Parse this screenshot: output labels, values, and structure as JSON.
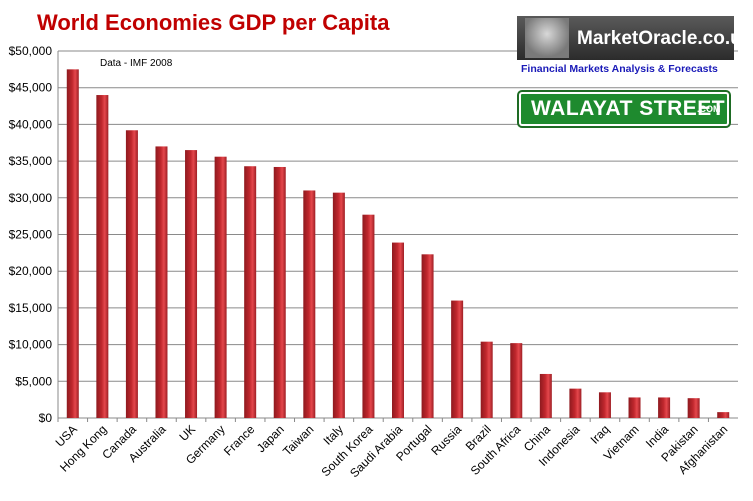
{
  "chart_data": {
    "type": "bar",
    "title": "World Economies GDP per Capita",
    "annotation": "Data - IMF 2008",
    "xlabel": "",
    "ylabel": "",
    "ylim": [
      0,
      50000
    ],
    "yticks": [
      "$0",
      "$5,000",
      "$10,000",
      "$15,000",
      "$20,000",
      "$25,000",
      "$30,000",
      "$35,000",
      "$40,000",
      "$45,000",
      "$50,000"
    ],
    "grid": true,
    "bar_color": "#c0272d",
    "categories": [
      "USA",
      "Hong Kong",
      "Canada",
      "Australia",
      "UK",
      "Germany",
      "France",
      "Japan",
      "Taiwan",
      "Italy",
      "South Korea",
      "Saudi Arabia",
      "Portugal",
      "Russia",
      "Brazil",
      "South Africa",
      "China",
      "Indonesia",
      "Iraq",
      "Vietnam",
      "India",
      "Pakistan",
      "Afghanistan"
    ],
    "values": [
      47500,
      44000,
      39200,
      37000,
      36500,
      35600,
      34300,
      34200,
      31000,
      30700,
      27700,
      23900,
      22300,
      16000,
      10400,
      10200,
      6000,
      4000,
      3500,
      2800,
      2800,
      2700,
      800
    ]
  },
  "branding": {
    "market_oracle_name": "MarketOracle.co.uk",
    "market_oracle_tagline": "Financial Markets Analysis & Forecasts",
    "walayat_sign": "WALAYAT STREET",
    "walayat_suffix": ".COM"
  }
}
